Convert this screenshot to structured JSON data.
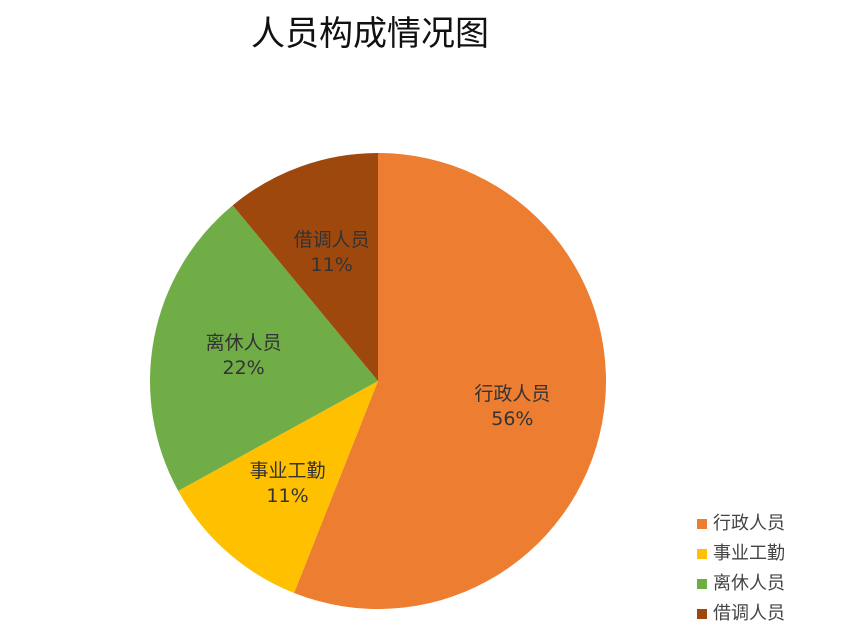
{
  "chart_data": {
    "type": "pie",
    "title": "人员构成情况图",
    "categories": [
      "行政人员",
      "事业工勤",
      "离休人员",
      "借调人员"
    ],
    "values": [
      56,
      11,
      22,
      11
    ],
    "value_labels": [
      "56%",
      "11%",
      "22%",
      "11%"
    ],
    "colors": [
      "#ED7D31",
      "#FFC000",
      "#70AD47",
      "#9E480E"
    ],
    "legend": "bottom-right"
  }
}
